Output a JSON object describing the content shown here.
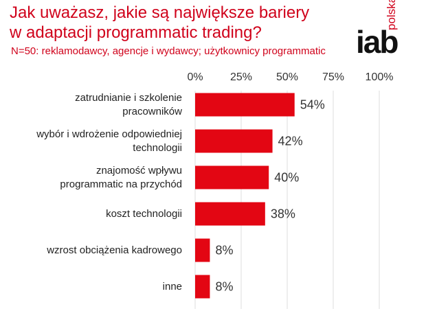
{
  "chart_data": {
    "type": "barh",
    "title": "Jak uważasz, jakie są największe bariery\nw adaptacji programmatic trading?",
    "subtitle": "N=50: reklamodawcy, agencje i wydawcy; użytkownicy programmatic",
    "logo": "iab",
    "logo_sub": "polska",
    "categories": [
      "zatrudnianie i szkolenie\npracowników",
      "wybór i wdrożenie odpowiedniej\ntechnologii",
      "znajomość wpływu\nprogrammatic na przychód",
      "koszt technologii",
      "wzrost obciążenia kadrowego",
      "inne"
    ],
    "values": [
      54,
      42,
      40,
      38,
      8,
      8
    ],
    "value_labels": [
      "54%",
      "42%",
      "40%",
      "38%",
      "8%",
      "8%"
    ],
    "color": "#e30613",
    "xlim": [
      0,
      100
    ],
    "xticks": [
      {
        "value": 0,
        "label": "0%"
      },
      {
        "value": 25,
        "label": "25%"
      },
      {
        "value": 50,
        "label": "50%"
      },
      {
        "value": 75,
        "label": "75%"
      },
      {
        "value": 100,
        "label": "100%"
      }
    ],
    "grid": true
  }
}
